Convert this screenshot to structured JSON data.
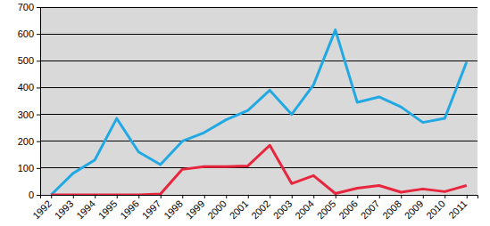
{
  "chart_data": {
    "type": "line",
    "categories": [
      "1992",
      "1993",
      "1994",
      "1995",
      "1996",
      "1997",
      "1998",
      "1999",
      "2000",
      "2001",
      "2002",
      "2003",
      "2004",
      "2005",
      "2006",
      "2007",
      "2008",
      "2009",
      "2010",
      "2011"
    ],
    "series": [
      {
        "color": "#22a9e3",
        "values": [
          0,
          80,
          130,
          285,
          160,
          113,
          200,
          232,
          280,
          315,
          390,
          300,
          410,
          615,
          345,
          365,
          328,
          270,
          285,
          495
        ]
      },
      {
        "color": "#e8263d",
        "values": [
          0,
          0,
          0,
          0,
          0,
          3,
          95,
          105,
          105,
          108,
          185,
          42,
          72,
          5,
          25,
          35,
          10,
          22,
          12,
          35
        ]
      }
    ],
    "ylim": [
      0,
      700
    ],
    "yticks": [
      0,
      100,
      200,
      300,
      400,
      500,
      600,
      700
    ],
    "grid": true
  }
}
